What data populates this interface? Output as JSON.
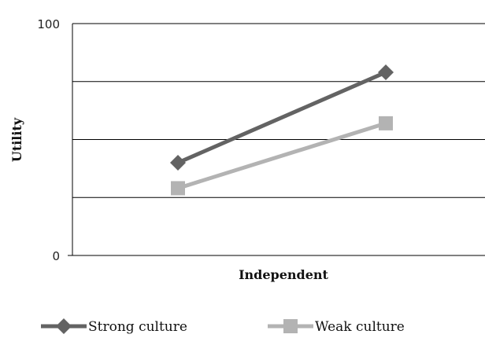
{
  "chart_data": {
    "type": "line",
    "title": "",
    "xlabel": "Independent",
    "ylabel": "Utility",
    "x": [
      "",
      ""
    ],
    "ylim": [
      0,
      100
    ],
    "y_tick_labels": [
      {
        "value": 0,
        "label": "0"
      },
      {
        "value": 100,
        "label": "100"
      }
    ],
    "gridlines": [
      25,
      50,
      75,
      100
    ],
    "series": [
      {
        "name": "Strong culture",
        "values": [
          40,
          79
        ],
        "color": "#636363",
        "marker": "diamond"
      },
      {
        "name": "Weak culture",
        "values": [
          29,
          57
        ],
        "color": "#b3b3b3",
        "marker": "square"
      }
    ],
    "legend_position": "bottom",
    "grid": true
  }
}
